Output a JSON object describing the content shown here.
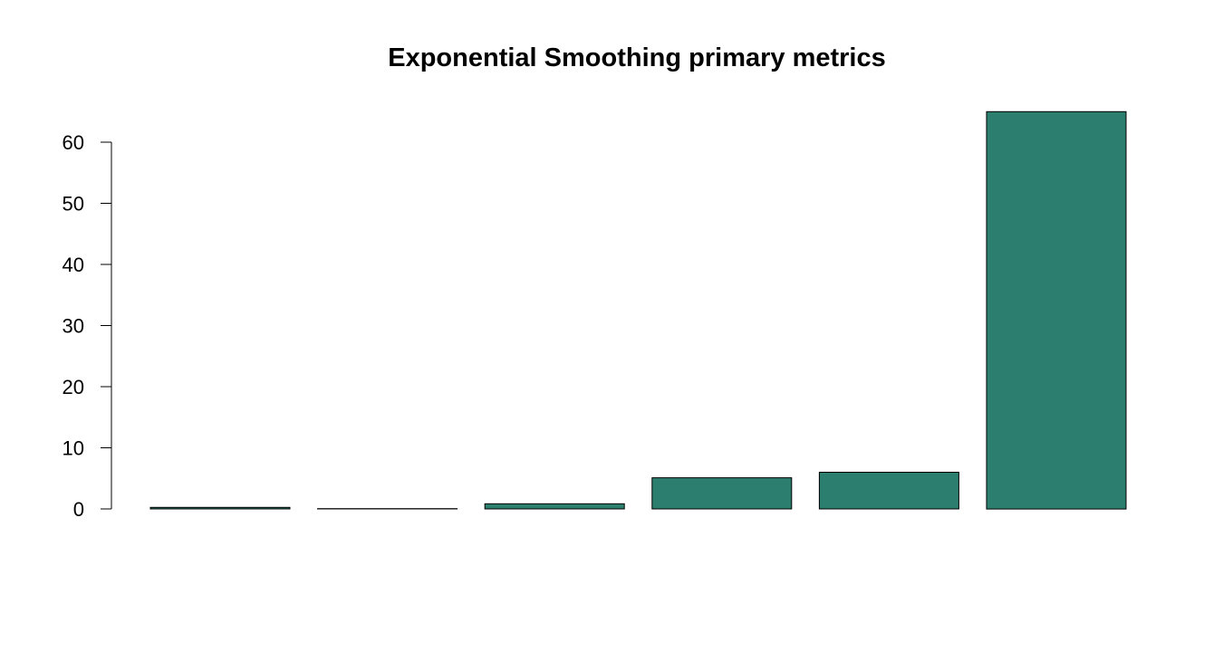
{
  "chart_data": {
    "type": "bar",
    "title": "Exponential Smoothing primary metrics",
    "xlabel": "",
    "ylabel": "",
    "categories": [
      "",
      "",
      "",
      "",
      "",
      ""
    ],
    "values": [
      0.25,
      0.05,
      0.85,
      5.1,
      6.0,
      65.0
    ],
    "ylim": [
      0,
      65
    ],
    "yticks": [
      0,
      10,
      20,
      30,
      40,
      50,
      60
    ],
    "grid": false,
    "legend": "none",
    "bar_color": "#2C7F6E",
    "bar_border_color": "#000000"
  }
}
